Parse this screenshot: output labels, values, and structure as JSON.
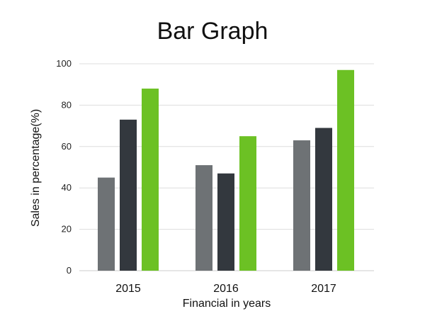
{
  "chart_data": {
    "type": "bar",
    "title": "Bar Graph",
    "xlabel": "Financial in years",
    "ylabel": "Sales in percentage(%)",
    "categories": [
      "2015",
      "2016",
      "2017"
    ],
    "ylim": [
      0,
      100
    ],
    "yticks": [
      "0",
      "20",
      "40",
      "60",
      "80",
      "100"
    ],
    "grid": true,
    "series": [
      {
        "color": "#6e7275",
        "values": [
          45,
          51,
          63
        ]
      },
      {
        "color": "#33383e",
        "values": [
          73,
          47,
          69
        ]
      },
      {
        "color": "#6cc124",
        "values": [
          88,
          65,
          97
        ]
      }
    ]
  }
}
